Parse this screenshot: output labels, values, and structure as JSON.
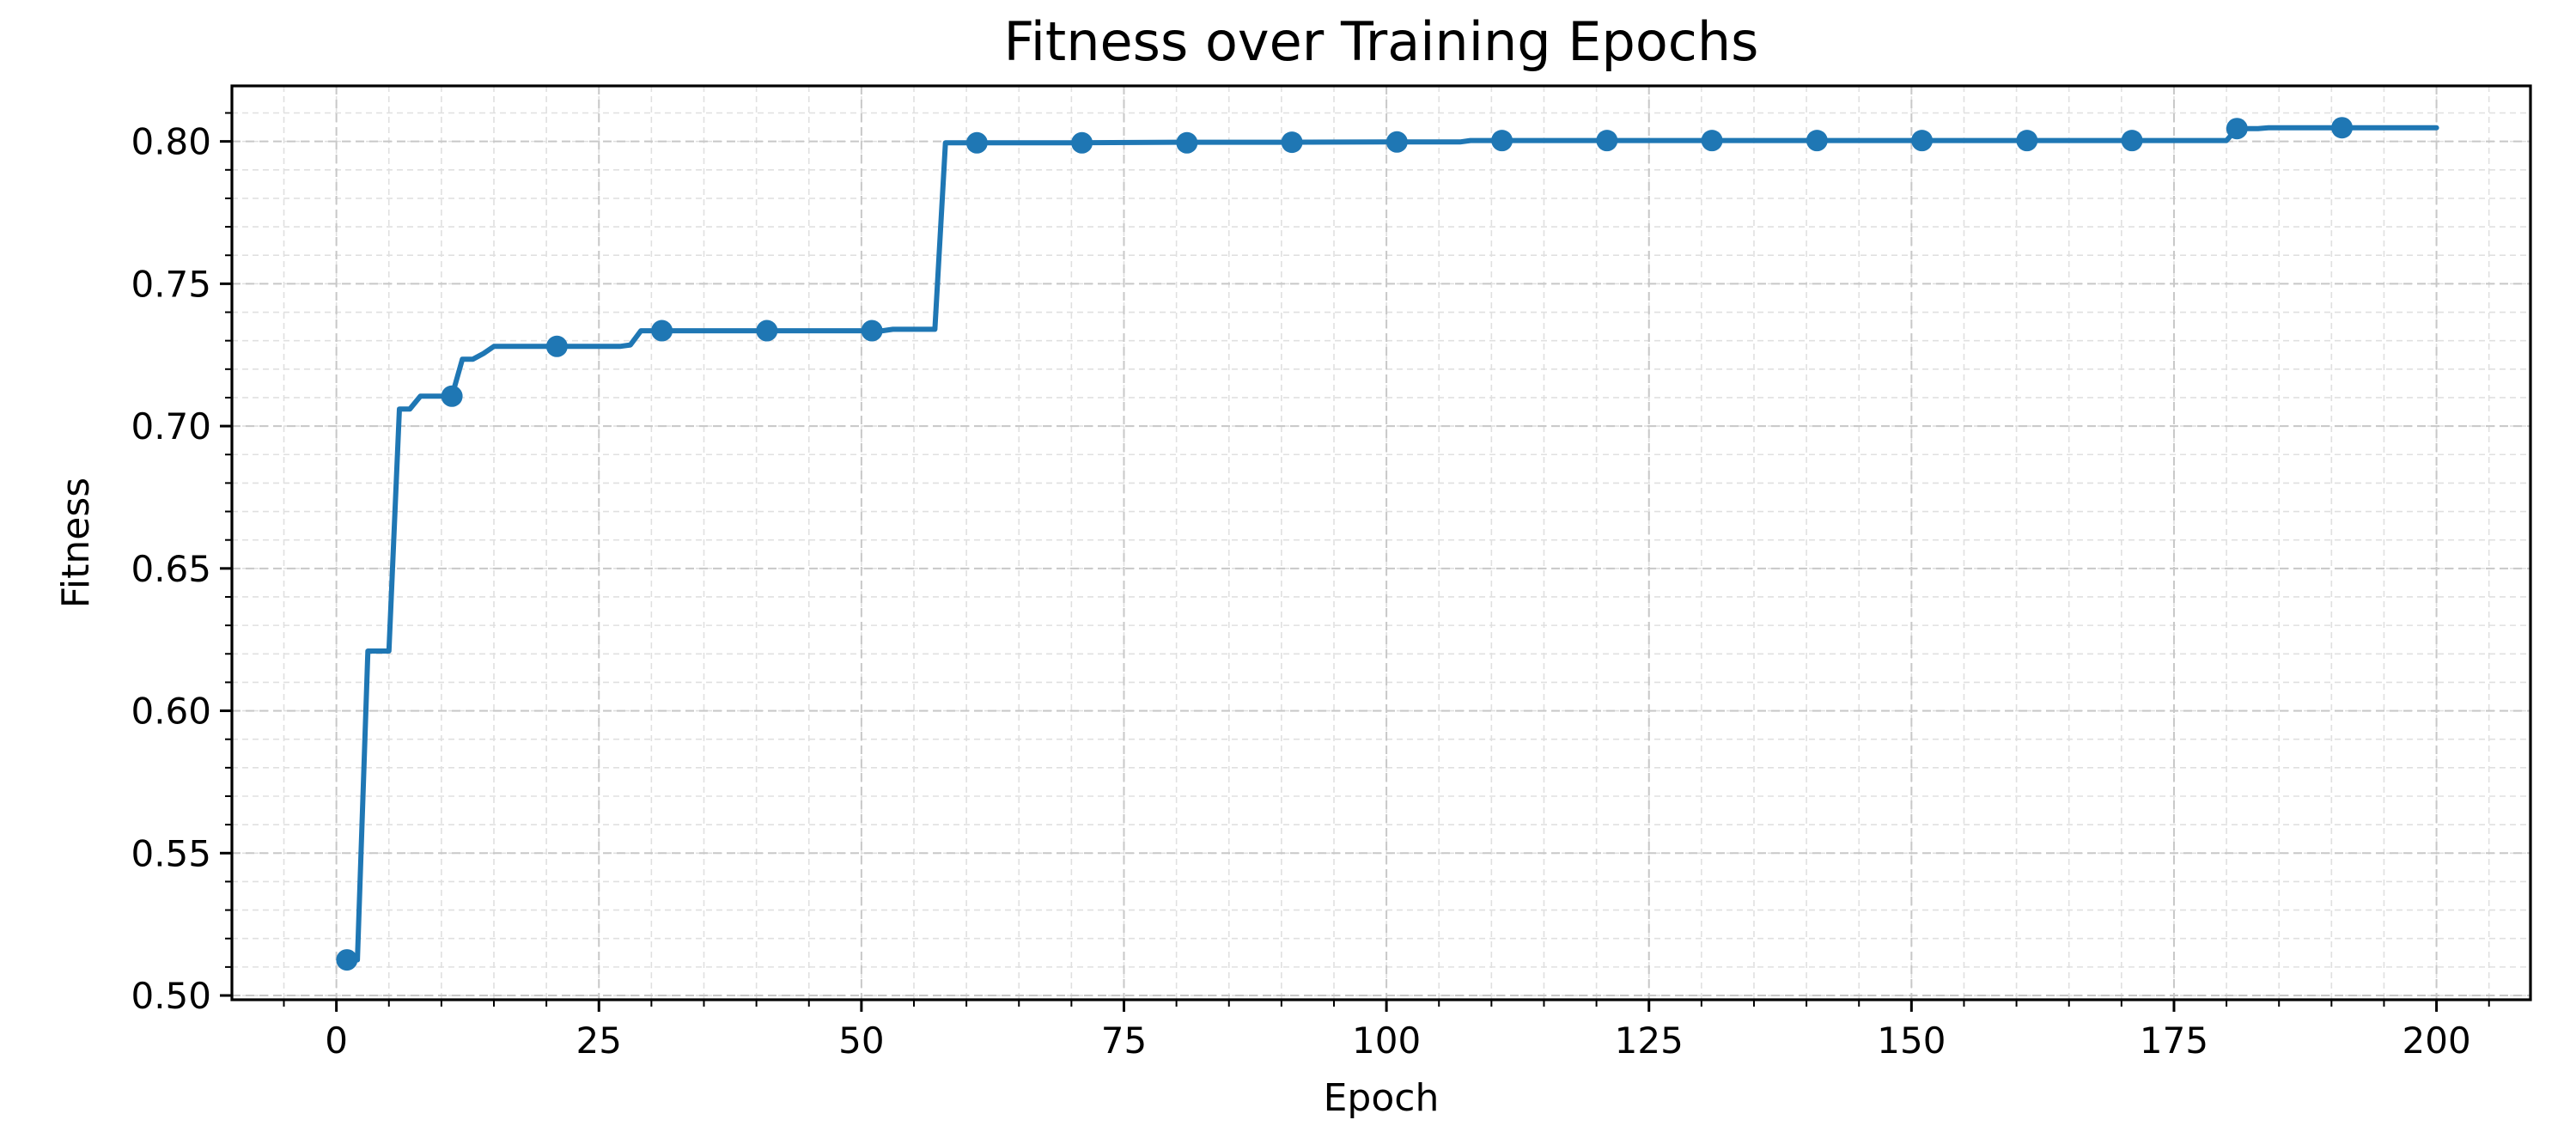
{
  "chart_data": {
    "type": "line",
    "title": "Fitness over Training Epochs",
    "xlabel": "Epoch",
    "ylabel": "Fitness",
    "xlim": [
      -9.95,
      208.95
    ],
    "ylim": [
      0.4985,
      0.8195
    ],
    "x_ticks": [
      0,
      25,
      50,
      75,
      100,
      125,
      150,
      175,
      200
    ],
    "x_tick_labels": [
      "0",
      "25",
      "50",
      "75",
      "100",
      "125",
      "150",
      "175",
      "200"
    ],
    "x_minor_step": 5,
    "y_ticks": [
      0.5,
      0.55,
      0.6,
      0.65,
      0.7,
      0.75,
      0.8
    ],
    "y_tick_labels": [
      "0.50",
      "0.55",
      "0.60",
      "0.65",
      "0.70",
      "0.75",
      "0.80"
    ],
    "y_minor_step": 0.01,
    "grid": true,
    "grid_minor": true,
    "series": [
      {
        "color": "#1f77b4",
        "x": [
          1,
          2,
          3,
          4,
          5,
          6,
          7,
          8,
          9,
          10,
          11,
          12,
          13,
          14,
          15,
          16,
          17,
          18,
          19,
          20,
          21,
          22,
          23,
          24,
          25,
          26,
          27,
          28,
          29,
          30,
          31,
          32,
          33,
          34,
          35,
          36,
          37,
          38,
          39,
          40,
          41,
          42,
          43,
          44,
          45,
          46,
          47,
          48,
          49,
          50,
          51,
          52,
          53,
          54,
          55,
          56,
          57,
          58,
          59,
          60,
          61,
          70,
          80,
          90,
          100,
          105,
          106,
          107,
          108,
          109,
          110,
          111,
          120,
          130,
          140,
          150,
          160,
          170,
          178,
          179,
          180,
          181,
          182,
          183,
          184,
          185,
          186,
          190,
          195,
          200
        ],
        "y": [
          0.5125,
          0.5125,
          0.621,
          0.621,
          0.621,
          0.706,
          0.706,
          0.7105,
          0.7105,
          0.7105,
          0.7105,
          0.7235,
          0.7235,
          0.7255,
          0.728,
          0.728,
          0.728,
          0.728,
          0.728,
          0.728,
          0.728,
          0.728,
          0.728,
          0.728,
          0.728,
          0.728,
          0.728,
          0.7285,
          0.7335,
          0.7335,
          0.7335,
          0.7335,
          0.7335,
          0.7335,
          0.7335,
          0.7335,
          0.7335,
          0.7335,
          0.7335,
          0.7335,
          0.7335,
          0.7335,
          0.7335,
          0.7335,
          0.7335,
          0.7335,
          0.7335,
          0.7335,
          0.7335,
          0.7335,
          0.7335,
          0.7335,
          0.734,
          0.734,
          0.734,
          0.734,
          0.734,
          0.7995,
          0.7995,
          0.7995,
          0.7995,
          0.7995,
          0.7997,
          0.7997,
          0.7998,
          0.7998,
          0.7998,
          0.7998,
          0.8003,
          0.8003,
          0.8003,
          0.8003,
          0.8003,
          0.8003,
          0.8003,
          0.8003,
          0.8003,
          0.8003,
          0.8003,
          0.8003,
          0.8003,
          0.8045,
          0.8045,
          0.8045,
          0.8048,
          0.8048,
          0.8048,
          0.8048,
          0.8048,
          0.8048
        ],
        "markers": {
          "x": [
            1,
            11,
            21,
            31,
            41,
            51,
            61,
            71,
            81,
            91,
            101,
            111,
            121,
            131,
            141,
            151,
            161,
            171,
            181,
            191
          ],
          "y": [
            0.5125,
            0.7105,
            0.728,
            0.7335,
            0.7335,
            0.7335,
            0.7995,
            0.7995,
            0.7995,
            0.7997,
            0.7998,
            0.8003,
            0.8003,
            0.8003,
            0.8003,
            0.8003,
            0.8003,
            0.8003,
            0.8045,
            0.8048
          ]
        }
      }
    ]
  }
}
